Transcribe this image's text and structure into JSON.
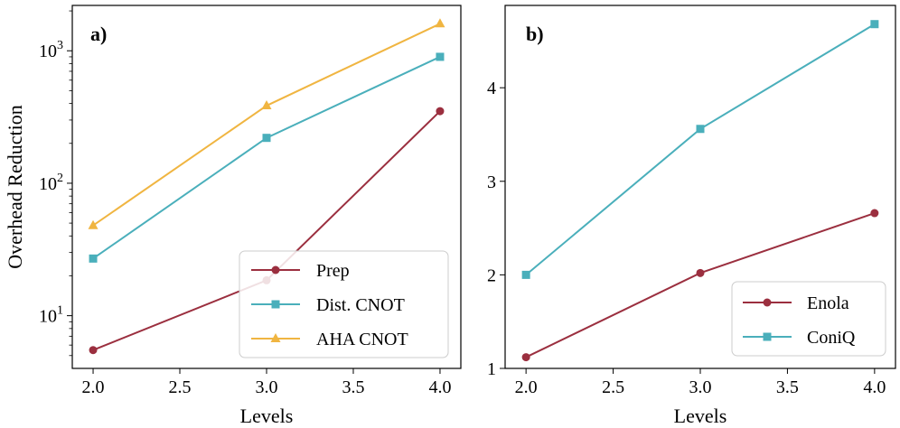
{
  "chart_data": [
    {
      "panel": "a)",
      "type": "line",
      "yscale": "log",
      "xlabel": "Levels",
      "ylabel": "Overhead Reduction",
      "xlim": [
        1.88,
        4.12
      ],
      "ylim": [
        4,
        2200
      ],
      "x_ticks": [
        2.0,
        2.5,
        3.0,
        3.5,
        4.0
      ],
      "x_tick_labels": [
        "2.0",
        "2.5",
        "3.0",
        "3.5",
        "4.0"
      ],
      "y_ticks": [
        10,
        100,
        1000
      ],
      "y_tick_base": "10",
      "y_tick_exponents": [
        "1",
        "2",
        "3"
      ],
      "legend_position": "lower-right",
      "series": [
        {
          "name": "Prep",
          "marker": "circle",
          "color": "#9b2f3f",
          "x": [
            2.0,
            3.0,
            4.0
          ],
          "values": [
            5.5,
            18.5,
            350
          ]
        },
        {
          "name": "Dist. CNOT",
          "marker": "square",
          "color": "#4aafbb",
          "x": [
            2.0,
            3.0,
            4.0
          ],
          "values": [
            27,
            220,
            900
          ]
        },
        {
          "name": "AHA CNOT",
          "marker": "triangle",
          "color": "#f0b541",
          "x": [
            2.0,
            3.0,
            4.0
          ],
          "values": [
            48,
            385,
            1600
          ]
        }
      ]
    },
    {
      "panel": "b)",
      "type": "line",
      "yscale": "linear",
      "xlabel": "Levels",
      "ylabel": "",
      "xlim": [
        1.88,
        4.12
      ],
      "ylim": [
        1.0,
        4.88
      ],
      "x_ticks": [
        2.0,
        2.5,
        3.0,
        3.5,
        4.0
      ],
      "x_tick_labels": [
        "2.0",
        "2.5",
        "3.0",
        "3.5",
        "4.0"
      ],
      "y_ticks": [
        1,
        2,
        3,
        4
      ],
      "y_tick_labels": [
        "1",
        "2",
        "3",
        "4"
      ],
      "legend_position": "lower-right",
      "series": [
        {
          "name": "Enola",
          "marker": "circle",
          "color": "#9b2f3f",
          "x": [
            2.0,
            3.0,
            4.0
          ],
          "values": [
            1.12,
            2.02,
            2.66
          ]
        },
        {
          "name": "ConiQ",
          "marker": "square",
          "color": "#4aafbb",
          "x": [
            2.0,
            3.0,
            4.0
          ],
          "values": [
            2.0,
            3.56,
            4.68
          ]
        }
      ]
    }
  ]
}
